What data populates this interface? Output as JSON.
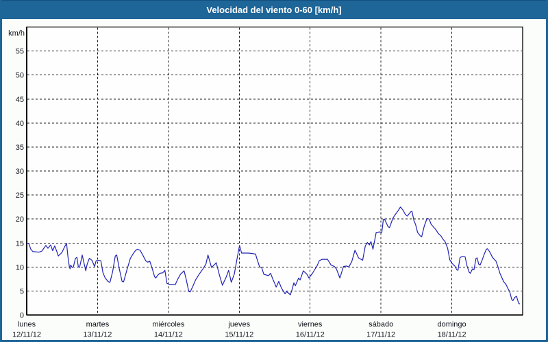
{
  "window": {
    "title": "Velocidad del viento 0-60 [km/h]"
  },
  "colors": {
    "title_bar": "#1e6598",
    "title_text": "#ffffff",
    "frame": "#1e6598",
    "top_edge": "#12517f",
    "background": "#fbfdfa",
    "plot_background": "#fdfefd",
    "axis": "#000000",
    "grid": "#1a1a1a",
    "tick_text": "#15151f",
    "line": "#2222b4"
  },
  "chart_data": {
    "type": "line",
    "title": "Velocidad del viento 0-60 [km/h]",
    "ylabel": "km/h",
    "ylim": [
      0,
      60
    ],
    "yticks": [
      0,
      5,
      10,
      15,
      20,
      25,
      30,
      35,
      40,
      45,
      50,
      55
    ],
    "xlim_hours": [
      0,
      168
    ],
    "x_unit": "hours from lunes 12/11/12 00:00",
    "grid": "dashed, both axes, black on white",
    "legend": "none",
    "day_ticks": [
      {
        "hour": 0,
        "day": "lunes",
        "date": "12/11/12"
      },
      {
        "hour": 24,
        "day": "martes",
        "date": "13/11/12"
      },
      {
        "hour": 48,
        "day": "miércoles",
        "date": "14/11/12"
      },
      {
        "hour": 72,
        "day": "jueves",
        "date": "15/11/12"
      },
      {
        "hour": 96,
        "day": "viernes",
        "date": "16/11/12"
      },
      {
        "hour": 120,
        "day": "sábado",
        "date": "17/11/12"
      },
      {
        "hour": 144,
        "day": "domingo",
        "date": "18/11/12"
      }
    ],
    "series": [
      {
        "name": "Velocidad del viento [km/h]",
        "color": "#2222b4",
        "points": [
          [
            0,
            15
          ],
          [
            0.7,
            14.9
          ],
          [
            1.4,
            13.7
          ],
          [
            2.1,
            13.2
          ],
          [
            4.2,
            13.1
          ],
          [
            5.1,
            13.3
          ],
          [
            5.8,
            13.9
          ],
          [
            6.5,
            14.5
          ],
          [
            7.2,
            13.9
          ],
          [
            8.1,
            14.6
          ],
          [
            8.8,
            13.4
          ],
          [
            9.5,
            14.4
          ],
          [
            10.2,
            13.2
          ],
          [
            10.7,
            12.3
          ],
          [
            11.9,
            13
          ],
          [
            13,
            14.4
          ],
          [
            13.5,
            14.9
          ],
          [
            14,
            12
          ],
          [
            14.4,
            10.2
          ],
          [
            14.7,
            9.6
          ],
          [
            14.9,
            10.4
          ],
          [
            15.4,
            9.9
          ],
          [
            15.8,
            10
          ],
          [
            16.5,
            11.8
          ],
          [
            17,
            12
          ],
          [
            17.5,
            10
          ],
          [
            17.9,
            9.9
          ],
          [
            18.4,
            11.3
          ],
          [
            18.8,
            12.5
          ],
          [
            19.3,
            11.1
          ],
          [
            20,
            9.2
          ],
          [
            20.5,
            10.6
          ],
          [
            21.2,
            11.8
          ],
          [
            22.1,
            11.4
          ],
          [
            23,
            10.1
          ],
          [
            23.5,
            11.3
          ],
          [
            24.4,
            11.4
          ],
          [
            25.1,
            11.3
          ],
          [
            25.8,
            8.9
          ],
          [
            26.5,
            7.8
          ],
          [
            27.5,
            7
          ],
          [
            28.2,
            6.8
          ],
          [
            29.1,
            9
          ],
          [
            30,
            12.3
          ],
          [
            30.5,
            12.5
          ],
          [
            31.4,
            9.5
          ],
          [
            32.3,
            7
          ],
          [
            32.8,
            6.9
          ],
          [
            34,
            9.5
          ],
          [
            35.1,
            11.8
          ],
          [
            36.1,
            12.8
          ],
          [
            36.8,
            13.4
          ],
          [
            37.5,
            13.7
          ],
          [
            38.4,
            13.5
          ],
          [
            39.3,
            12.5
          ],
          [
            40.3,
            11.3
          ],
          [
            41,
            11
          ],
          [
            41.7,
            11.2
          ],
          [
            42.6,
            9.5
          ],
          [
            43.3,
            8
          ],
          [
            43.7,
            7.7
          ],
          [
            44.4,
            8.3
          ],
          [
            45.1,
            8.7
          ],
          [
            46.1,
            8.8
          ],
          [
            46.8,
            9.3
          ],
          [
            47.5,
            6.6
          ],
          [
            48.2,
            6.4
          ],
          [
            50.3,
            6.3
          ],
          [
            51.2,
            7.5
          ],
          [
            52.1,
            8.5
          ],
          [
            53.3,
            9.2
          ],
          [
            54,
            7.5
          ],
          [
            54.9,
            4.9
          ],
          [
            55.4,
            4.8
          ],
          [
            56.3,
            6
          ],
          [
            57.2,
            7.3
          ],
          [
            58.4,
            8.5
          ],
          [
            59.6,
            9.5
          ],
          [
            60.7,
            10.6
          ],
          [
            61.4,
            12.5
          ],
          [
            62.6,
            9.9
          ],
          [
            63.8,
            10.6
          ],
          [
            64.2,
            10.9
          ],
          [
            65.2,
            8.5
          ],
          [
            66.3,
            6.2
          ],
          [
            67.5,
            7.8
          ],
          [
            68.4,
            9.3
          ],
          [
            69.3,
            6.8
          ],
          [
            70.3,
            8.5
          ],
          [
            71.2,
            11.5
          ],
          [
            72.1,
            14.5
          ],
          [
            72.8,
            12.9
          ],
          [
            75.2,
            12.9
          ],
          [
            77.5,
            12.7
          ],
          [
            78.2,
            11.3
          ],
          [
            78.9,
            10
          ],
          [
            79.6,
            9.9
          ],
          [
            80.3,
            8.5
          ],
          [
            81.9,
            8.2
          ],
          [
            82.6,
            8.7
          ],
          [
            83.5,
            7.3
          ],
          [
            84,
            6.6
          ],
          [
            84.5,
            5.8
          ],
          [
            85.4,
            7
          ],
          [
            86.3,
            5.6
          ],
          [
            87.5,
            4.4
          ],
          [
            88,
            4.9
          ],
          [
            88.4,
            4.7
          ],
          [
            89.3,
            4.2
          ],
          [
            89.8,
            5.1
          ],
          [
            90.5,
            6.7
          ],
          [
            91,
            6.1
          ],
          [
            92.1,
            7.7
          ],
          [
            92.6,
            7.3
          ],
          [
            93.7,
            9.2
          ],
          [
            94.9,
            8.5
          ],
          [
            95.6,
            7.7
          ],
          [
            96.8,
            8.7
          ],
          [
            97.5,
            9.4
          ],
          [
            98.4,
            10.3
          ],
          [
            99.1,
            11.3
          ],
          [
            100.1,
            11.6
          ],
          [
            101.9,
            11.6
          ],
          [
            103.1,
            10.4
          ],
          [
            104.2,
            10.1
          ],
          [
            104.9,
            9.6
          ],
          [
            106.1,
            7.7
          ],
          [
            107.3,
            10.1
          ],
          [
            108.4,
            10.2
          ],
          [
            109.1,
            10
          ],
          [
            110.1,
            11.1
          ],
          [
            111.2,
            13.5
          ],
          [
            112.4,
            11.9
          ],
          [
            113.8,
            11.4
          ],
          [
            114.7,
            14.4
          ],
          [
            115.4,
            15.1
          ],
          [
            116.1,
            14.6
          ],
          [
            116.6,
            15.3
          ],
          [
            117.3,
            13.7
          ],
          [
            118.4,
            17.2
          ],
          [
            119.6,
            17.3
          ],
          [
            120.3,
            17.2
          ],
          [
            120.8,
            19.9
          ],
          [
            121.2,
            20
          ],
          [
            122.4,
            18.4
          ],
          [
            122.9,
            18.2
          ],
          [
            124,
            20.1
          ],
          [
            124.7,
            20.8
          ],
          [
            125.9,
            21.8
          ],
          [
            126.6,
            22.5
          ],
          [
            127.5,
            21.8
          ],
          [
            128.2,
            21
          ],
          [
            128.9,
            20.6
          ],
          [
            130.1,
            21.5
          ],
          [
            130.5,
            21.6
          ],
          [
            131.2,
            19.6
          ],
          [
            131.7,
            18.9
          ],
          [
            132.4,
            17.2
          ],
          [
            133.3,
            16.5
          ],
          [
            133.8,
            16.3
          ],
          [
            134.7,
            18.6
          ],
          [
            135.6,
            20.1
          ],
          [
            136.3,
            20
          ],
          [
            137,
            18.9
          ],
          [
            138.7,
            17.7
          ],
          [
            139.4,
            17
          ],
          [
            140.3,
            16.5
          ],
          [
            141,
            15.8
          ],
          [
            141.7,
            15.3
          ],
          [
            142.6,
            13.9
          ],
          [
            143.3,
            11.5
          ],
          [
            144,
            10.8
          ],
          [
            144.5,
            10.5
          ],
          [
            145,
            10.2
          ],
          [
            145.7,
            9.4
          ],
          [
            146.1,
            9.3
          ],
          [
            146.8,
            12
          ],
          [
            147.8,
            12.2
          ],
          [
            148.5,
            12.1
          ],
          [
            149.2,
            10.1
          ],
          [
            149.9,
            8.9
          ],
          [
            150.3,
            8.7
          ],
          [
            151,
            9.6
          ],
          [
            151.5,
            9.4
          ],
          [
            152.2,
            11.8
          ],
          [
            152.6,
            11.9
          ],
          [
            153.1,
            10.6
          ],
          [
            153.6,
            10.4
          ],
          [
            154.3,
            11.5
          ],
          [
            155,
            12.7
          ],
          [
            155.7,
            13.7
          ],
          [
            156.1,
            13.8
          ],
          [
            156.8,
            13.2
          ],
          [
            157.8,
            12
          ],
          [
            158.5,
            11.5
          ],
          [
            158.9,
            11.3
          ],
          [
            159.6,
            10.1
          ],
          [
            160.3,
            8.7
          ],
          [
            160.8,
            8
          ],
          [
            161.5,
            7
          ],
          [
            162.4,
            6.3
          ],
          [
            163.1,
            5.4
          ],
          [
            163.6,
            4.9
          ],
          [
            164.3,
            3.2
          ],
          [
            164.7,
            3
          ],
          [
            165.4,
            3.7
          ],
          [
            165.9,
            3.9
          ],
          [
            166.6,
            2.5
          ],
          [
            167,
            2.3
          ]
        ]
      }
    ]
  }
}
